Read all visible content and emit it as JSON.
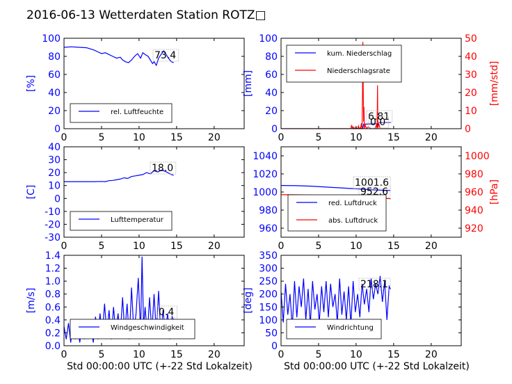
{
  "page": {
    "title": "2016-06-13 Wetterdaten Station ROTZ□"
  },
  "chart_data": [
    {
      "id": "humidity",
      "type": "line",
      "title": "",
      "xlabel": "",
      "ylabel": "[%]",
      "xlim": [
        0,
        24
      ],
      "ylim": [
        0,
        100
      ],
      "xticks": [
        0,
        5,
        10,
        15,
        20
      ],
      "yticks": [
        0,
        20,
        40,
        60,
        80,
        100
      ],
      "series": [
        {
          "name": "rel. Luftfeuchte",
          "color": "#0000ff",
          "x": [
            0,
            1,
            2,
            3,
            4,
            4.5,
            5,
            5.5,
            6,
            6.5,
            7,
            7.5,
            7.8,
            8.2,
            8.6,
            9,
            9.4,
            9.8,
            10.2,
            10.5,
            10.8,
            11.2,
            11.5,
            11.8,
            12,
            12.3,
            12.6,
            13,
            13.3,
            13.6,
            14,
            14.3,
            14.6
          ],
          "y": [
            90,
            90.5,
            90,
            89.5,
            87,
            85,
            83,
            84,
            82,
            80,
            78,
            79,
            76,
            74,
            73,
            76,
            80,
            83,
            78,
            84,
            82,
            80,
            76,
            72,
            74,
            70,
            78,
            83,
            86,
            82,
            77,
            74,
            73
          ]
        }
      ],
      "annotations": [
        "73.4"
      ],
      "legend": "lower-left"
    },
    {
      "id": "precip",
      "type": "line",
      "title": "",
      "xlabel": "",
      "ylabel": "[mm]",
      "ylabel_right": "[mm/std]",
      "xlim": [
        0,
        24
      ],
      "ylim": [
        0,
        100
      ],
      "ylim_right": [
        0,
        50
      ],
      "xticks": [
        0,
        5,
        10,
        15,
        20
      ],
      "yticks": [
        0,
        20,
        40,
        60,
        80,
        100
      ],
      "yticks_right": [
        0,
        10,
        20,
        30,
        40,
        50
      ],
      "series": [
        {
          "name": "kum. Niederschlag",
          "color": "#0000ff",
          "axis": "left",
          "x": [
            0,
            9.5,
            10.5,
            10.9,
            11,
            12,
            12.8,
            12.9,
            14.6
          ],
          "y": [
            0,
            0.1,
            0.3,
            0.6,
            5,
            5.2,
            5.5,
            6.8,
            6.81
          ]
        },
        {
          "name": "Niederschlagsrate",
          "color": "#ff0000",
          "axis": "right",
          "x": [
            0,
            9.3,
            9.4,
            9.5,
            9.6,
            9.7,
            9.8,
            9.9,
            10.0,
            10.1,
            10.2,
            10.3,
            10.4,
            10.5,
            10.6,
            10.7,
            10.8,
            10.85,
            10.9,
            10.95,
            11.0,
            11.05,
            11.1,
            11.2,
            11.4,
            11.6,
            12.0,
            12.5,
            12.7,
            12.8,
            12.85,
            12.9,
            13.0,
            13.2,
            14.6
          ],
          "y": [
            0,
            0,
            2,
            0,
            1,
            0,
            0.5,
            0,
            0.8,
            0,
            0,
            1.5,
            0,
            0.5,
            0,
            3,
            0,
            20,
            48,
            20,
            4,
            12,
            0,
            2,
            0,
            1,
            0,
            0,
            2,
            0,
            24,
            0,
            3,
            0,
            0
          ]
        }
      ],
      "annotations": [
        "6.81",
        "0.0"
      ],
      "legend": "upper-left"
    },
    {
      "id": "temp",
      "type": "line",
      "title": "",
      "xlabel": "",
      "ylabel": "[C]",
      "xlim": [
        0,
        24
      ],
      "ylim": [
        -30,
        40
      ],
      "xticks": [
        0,
        5,
        10,
        15,
        20
      ],
      "yticks": [
        -30,
        -20,
        -10,
        0,
        10,
        20,
        30,
        40
      ],
      "series": [
        {
          "name": "Lufttemperatur",
          "color": "#0000ff",
          "x": [
            0,
            1,
            2,
            3,
            4,
            5,
            5.5,
            6,
            6.5,
            7,
            7.5,
            8,
            8.5,
            9,
            9.5,
            10,
            10.5,
            11,
            11.5,
            12,
            12.5,
            13,
            13.5,
            14,
            14.3,
            14.6
          ],
          "y": [
            13,
            13,
            13,
            13,
            13,
            13.2,
            13,
            13.8,
            14,
            14.5,
            15,
            16,
            15.5,
            17,
            17.5,
            18,
            18.5,
            20,
            19,
            21.5,
            20.5,
            22,
            21,
            19.5,
            18.5,
            18
          ]
        }
      ],
      "annotations": [
        "18.0"
      ],
      "legend": "lower-left"
    },
    {
      "id": "pressure",
      "type": "line",
      "title": "",
      "xlabel": "",
      "ylabel": "",
      "ylabel_right": "[hPa]",
      "xlim": [
        0,
        24
      ],
      "ylim": [
        950,
        1050
      ],
      "ylim_right": [
        910,
        1010
      ],
      "xticks": [
        0,
        5,
        10,
        15,
        20
      ],
      "yticks": [
        960,
        980,
        1000,
        1020,
        1040
      ],
      "yticks_right": [
        920,
        940,
        960,
        980,
        1000
      ],
      "series": [
        {
          "name": "red. Luftdruck",
          "color": "#0000ff",
          "axis": "left",
          "x": [
            0,
            2,
            4,
            6,
            8,
            10,
            12,
            14.6
          ],
          "y": [
            1007.2,
            1007,
            1006.5,
            1005.5,
            1004.5,
            1003.5,
            1002.5,
            1001.6
          ]
        },
        {
          "name": "abs. Luftdruck",
          "color": "#ff0000",
          "axis": "right",
          "x": [
            0,
            2,
            4,
            6,
            8,
            10,
            12,
            14.6
          ],
          "y": [
            957,
            956.9,
            956.6,
            956,
            955.3,
            954.5,
            953.6,
            952.6
          ]
        }
      ],
      "annotations": [
        "1001.6",
        "952.6"
      ],
      "legend": "lower-left"
    },
    {
      "id": "wind",
      "type": "line",
      "title": "",
      "xlabel": "Std 00:00:00 UTC (+-22 Std Lokalzeit)",
      "ylabel": "[m/s]",
      "xlim": [
        0,
        24
      ],
      "ylim": [
        0,
        1.4
      ],
      "xticks": [
        0,
        5,
        10,
        15,
        20
      ],
      "yticks": [
        0.0,
        0.2,
        0.4,
        0.6,
        0.8,
        1.0,
        1.2,
        1.4
      ],
      "series": [
        {
          "name": "Windgeschwindigkeit",
          "color": "#0000ff",
          "x": [
            0,
            0.3,
            0.6,
            0.9,
            1.2,
            1.5,
            1.8,
            2.1,
            2.4,
            2.7,
            3.0,
            3.3,
            3.6,
            3.9,
            4.2,
            4.5,
            4.8,
            5.1,
            5.4,
            5.7,
            6.0,
            6.3,
            6.6,
            6.9,
            7.2,
            7.5,
            7.8,
            8.1,
            8.4,
            8.7,
            9.0,
            9.3,
            9.6,
            9.9,
            10.2,
            10.4,
            10.6,
            10.8,
            11.1,
            11.4,
            11.7,
            12.0,
            12.3,
            12.6,
            12.9,
            13.2,
            13.5,
            13.8,
            14.1,
            14.4,
            14.6
          ],
          "y": [
            0.3,
            0.1,
            0.35,
            0.05,
            0.4,
            0.1,
            0.3,
            0.05,
            0.35,
            0.1,
            0.4,
            0.15,
            0.3,
            0.05,
            0.45,
            0.1,
            0.5,
            0.15,
            0.65,
            0.2,
            0.55,
            0.1,
            0.6,
            0.2,
            0.5,
            0.15,
            0.75,
            0.2,
            0.65,
            0.1,
            0.9,
            0.2,
            0.5,
            1.05,
            0.2,
            1.38,
            0.3,
            0.6,
            0.15,
            0.75,
            0.2,
            0.8,
            0.2,
            0.85,
            0.15,
            0.55,
            0.2,
            0.5,
            0.1,
            0.45,
            0.4
          ]
        }
      ],
      "annotations": [
        "0.4"
      ],
      "legend": "lower-right"
    },
    {
      "id": "winddir",
      "type": "line",
      "title": "",
      "xlabel": "Std 00:00:00 UTC (+-22 Std Lokalzeit)",
      "ylabel": "[deg]",
      "xlim": [
        0,
        24
      ],
      "ylim": [
        0,
        350
      ],
      "xticks": [
        0,
        5,
        10,
        15,
        20
      ],
      "yticks": [
        0,
        50,
        100,
        150,
        200,
        250,
        300,
        350
      ],
      "series": [
        {
          "name": "Windrichtung",
          "color": "#0000ff",
          "x": [
            0,
            0.3,
            0.6,
            0.9,
            1.2,
            1.5,
            1.8,
            2.1,
            2.4,
            2.7,
            3.0,
            3.3,
            3.6,
            3.9,
            4.2,
            4.5,
            4.8,
            5.1,
            5.4,
            5.7,
            6.0,
            6.3,
            6.6,
            6.9,
            7.2,
            7.5,
            7.8,
            8.1,
            8.4,
            8.7,
            9.0,
            9.3,
            9.6,
            9.9,
            10.2,
            10.5,
            10.8,
            11.1,
            11.4,
            11.7,
            12.0,
            12.3,
            12.6,
            12.9,
            13.2,
            13.5,
            13.8,
            14.1,
            14.4,
            14.6
          ],
          "y": [
            210,
            90,
            240,
            120,
            200,
            70,
            250,
            110,
            230,
            150,
            260,
            100,
            220,
            80,
            250,
            140,
            200,
            90,
            230,
            130,
            250,
            110,
            240,
            150,
            200,
            90,
            260,
            120,
            210,
            100,
            230,
            80,
            250,
            130,
            200,
            110,
            240,
            160,
            220,
            130,
            260,
            180,
            240,
            200,
            270,
            170,
            250,
            100,
            230,
            218
          ]
        }
      ],
      "annotations": [
        "218.1"
      ],
      "legend": "lower-left"
    }
  ]
}
